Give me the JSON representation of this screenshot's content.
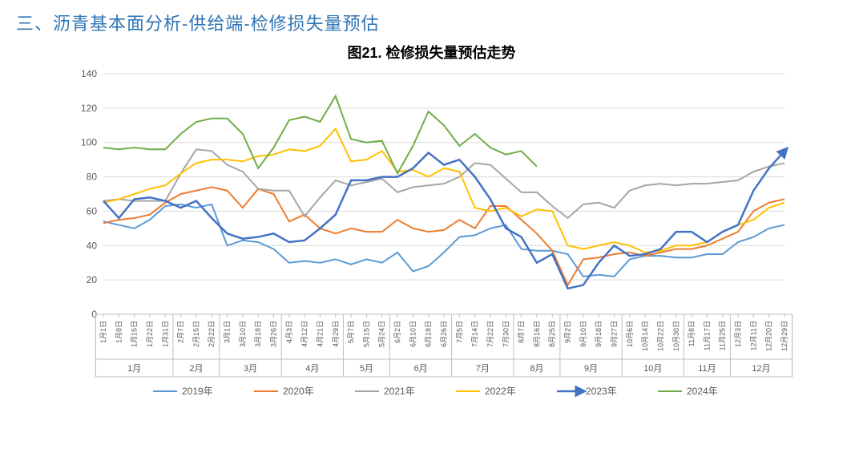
{
  "section_title": "三、沥青基本面分析-供给端-检修损失量预估",
  "chart": {
    "title": "图21. 检修损失量预估走势",
    "type": "line",
    "background_color": "#ffffff",
    "grid_color": "#d9d9d9",
    "axis_color": "#bfbfbf",
    "tick_fontsize": 12,
    "xtick_fontsize": 9,
    "title_fontsize": 18,
    "ylim": [
      0,
      140
    ],
    "ytick_step": 20,
    "yticks": [
      0,
      20,
      40,
      60,
      80,
      100,
      120,
      140
    ],
    "x_labels": [
      "1月1日",
      "1月8日",
      "1月15日",
      "1月22日",
      "1月31日",
      "2月7日",
      "2月15日",
      "2月22日",
      "3月1日",
      "3月10日",
      "3月18日",
      "3月26日",
      "4月3日",
      "4月12日",
      "4月21日",
      "4月29日",
      "5月7日",
      "5月15日",
      "5月24日",
      "6月2日",
      "6月10日",
      "6月18日",
      "6月26日",
      "7月5日",
      "7月14日",
      "7月22日",
      "7月30日",
      "8月7日",
      "8月16日",
      "8月25日",
      "9月2日",
      "9月10日",
      "9月18日",
      "9月27日",
      "10月6日",
      "10月14日",
      "10月22日",
      "10月30日",
      "11月8日",
      "11月17日",
      "11月25日",
      "12月3日",
      "12月11日",
      "12月20日",
      "12月29日"
    ],
    "months": [
      "1月",
      "2月",
      "3月",
      "4月",
      "5月",
      "6月",
      "7月",
      "8月",
      "9月",
      "10月",
      "11月",
      "12月"
    ],
    "month_spans": [
      5,
      3,
      4,
      4,
      3,
      4,
      4,
      3,
      4,
      4,
      3,
      4
    ],
    "series": [
      {
        "name": "2019年",
        "color": "#5b9bd5",
        "width": 2,
        "marker": "none",
        "values": [
          54,
          52,
          50,
          55,
          63,
          64,
          62,
          64,
          40,
          43,
          42,
          38,
          30,
          31,
          30,
          32,
          29,
          32,
          30,
          36,
          25,
          28,
          36,
          45,
          46,
          50,
          52,
          38,
          37,
          37,
          35,
          22,
          23,
          22,
          32,
          34,
          34,
          33,
          33,
          35,
          35,
          42,
          45,
          50,
          52
        ]
      },
      {
        "name": "2020年",
        "color": "#ed7d31",
        "width": 2,
        "marker": "none",
        "values": [
          53,
          55,
          56,
          58,
          65,
          70,
          72,
          74,
          72,
          62,
          73,
          70,
          54,
          58,
          50,
          47,
          50,
          48,
          48,
          55,
          50,
          48,
          49,
          55,
          50,
          63,
          63,
          55,
          47,
          37,
          17,
          32,
          33,
          35,
          36,
          34,
          36,
          38,
          38,
          40,
          44,
          48,
          60,
          65,
          67
        ]
      },
      {
        "name": "2021年",
        "color": "#a5a5a5",
        "width": 2,
        "marker": "none",
        "values": [
          66,
          67,
          66,
          66,
          66,
          82,
          96,
          95,
          87,
          83,
          73,
          72,
          72,
          57,
          68,
          78,
          75,
          77,
          79,
          71,
          74,
          75,
          76,
          80,
          88,
          87,
          79,
          71,
          71,
          63,
          56,
          64,
          65,
          62,
          72,
          75,
          76,
          75,
          76,
          76,
          77,
          78,
          83,
          86,
          88
        ]
      },
      {
        "name": "2022年",
        "color": "#ffc000",
        "width": 2,
        "marker": "none",
        "values": [
          65,
          67,
          70,
          73,
          75,
          82,
          88,
          90,
          90,
          89,
          92,
          93,
          96,
          95,
          98,
          108,
          89,
          90,
          95,
          83,
          84,
          80,
          85,
          83,
          62,
          60,
          62,
          57,
          61,
          60,
          40,
          38,
          40,
          42,
          40,
          36,
          37,
          40,
          40,
          42,
          48,
          52,
          55,
          62,
          65
        ]
      },
      {
        "name": "2023年",
        "color": "#4472c4",
        "width": 2.5,
        "marker": "arrow",
        "values": [
          66,
          56,
          67,
          68,
          66,
          62,
          66,
          56,
          47,
          44,
          45,
          47,
          42,
          43,
          50,
          58,
          78,
          78,
          80,
          80,
          85,
          94,
          87,
          90,
          80,
          67,
          50,
          45,
          30,
          35,
          15,
          17,
          30,
          40,
          34,
          35,
          38,
          48,
          48,
          42,
          48,
          52,
          72,
          85,
          95
        ]
      },
      {
        "name": "2024年",
        "color": "#70ad47",
        "width": 2,
        "marker": "none",
        "values": [
          97,
          96,
          97,
          96,
          96,
          105,
          112,
          114,
          114,
          105,
          85,
          97,
          113,
          115,
          112,
          127,
          102,
          100,
          101,
          82,
          98,
          118,
          110,
          98,
          105,
          97,
          93,
          95,
          86,
          null,
          null,
          null,
          null,
          null,
          null,
          null,
          null,
          null,
          null,
          null,
          null,
          null,
          null,
          null,
          null
        ]
      }
    ],
    "legend_marker_len": 30
  }
}
